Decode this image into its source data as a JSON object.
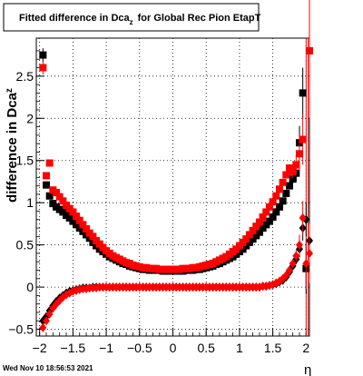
{
  "chart_data": {
    "type": "scatter",
    "title": "Fitted difference in Dca",
    "title_subscript": "z",
    "title_suffix": "for Global Rec Pion EtapT",
    "xlabel": "η",
    "ylabel": "difference in Dca",
    "ylabel_subscript": "z",
    "xlim": [
      -2.05,
      2.05
    ],
    "ylim": [
      -0.58,
      2.95
    ],
    "xticks": [
      {
        "v": -2,
        "label": "−2"
      },
      {
        "v": -1.5,
        "label": "−1.5"
      },
      {
        "v": -1,
        "label": "−1"
      },
      {
        "v": -0.5,
        "label": "−0.5"
      },
      {
        "v": 0,
        "label": "0"
      },
      {
        "v": 0.5,
        "label": "0.5"
      },
      {
        "v": 1,
        "label": "1"
      },
      {
        "v": 1.5,
        "label": "1.5"
      },
      {
        "v": 2,
        "label": "2"
      }
    ],
    "yticks": [
      {
        "v": -0.5,
        "label": "−0.5"
      },
      {
        "v": 0,
        "label": "0"
      },
      {
        "v": 0.5,
        "label": "0.5"
      },
      {
        "v": 1,
        "label": "1"
      },
      {
        "v": 1.5,
        "label": "1.5"
      },
      {
        "v": 2,
        "label": "2"
      },
      {
        "v": 2.5,
        "label": "2.5"
      }
    ],
    "grid": true,
    "series": [
      {
        "color": "#000000",
        "marker": "square",
        "x": [
          -1.95,
          -1.9,
          -1.85,
          -1.8,
          -1.75,
          -1.7,
          -1.65,
          -1.6,
          -1.55,
          -1.5,
          -1.45,
          -1.4,
          -1.35,
          -1.3,
          -1.25,
          -1.2,
          -1.15,
          -1.1,
          -1.05,
          -1.0,
          -0.95,
          -0.9,
          -0.85,
          -0.8,
          -0.75,
          -0.7,
          -0.65,
          -0.6,
          -0.55,
          -0.5,
          -0.45,
          -0.4,
          -0.35,
          -0.3,
          -0.25,
          -0.2,
          -0.15,
          -0.1,
          -0.05,
          0.0,
          0.05,
          0.1,
          0.15,
          0.2,
          0.25,
          0.3,
          0.35,
          0.4,
          0.45,
          0.5,
          0.55,
          0.6,
          0.65,
          0.7,
          0.75,
          0.8,
          0.85,
          0.9,
          0.95,
          1.0,
          1.05,
          1.1,
          1.15,
          1.2,
          1.25,
          1.3,
          1.35,
          1.4,
          1.45,
          1.5,
          1.55,
          1.6,
          1.65,
          1.7,
          1.75,
          1.8,
          1.85,
          1.9,
          1.95,
          2.0
        ],
        "y": [
          2.75,
          1.21,
          1.08,
          0.99,
          0.95,
          0.92,
          0.89,
          0.85,
          0.82,
          0.78,
          0.74,
          0.7,
          0.66,
          0.62,
          0.58,
          0.53,
          0.49,
          0.45,
          0.42,
          0.39,
          0.36,
          0.34,
          0.32,
          0.3,
          0.28,
          0.27,
          0.25,
          0.24,
          0.23,
          0.22,
          0.21,
          0.21,
          0.2,
          0.2,
          0.2,
          0.2,
          0.19,
          0.19,
          0.19,
          0.19,
          0.19,
          0.19,
          0.19,
          0.2,
          0.2,
          0.2,
          0.21,
          0.21,
          0.22,
          0.23,
          0.24,
          0.25,
          0.27,
          0.28,
          0.3,
          0.32,
          0.34,
          0.36,
          0.39,
          0.42,
          0.45,
          0.49,
          0.53,
          0.57,
          0.61,
          0.65,
          0.7,
          0.74,
          0.78,
          0.83,
          0.89,
          0.95,
          1.02,
          1.11,
          1.2,
          1.28,
          1.35,
          1.71,
          2.3,
          0.22
        ],
        "err": [
          0.08,
          0.03,
          0.02,
          0.02,
          0.01,
          0.01,
          0.01,
          0.01,
          0.01,
          0.01,
          0.01,
          0.01,
          0.01,
          0.01,
          0.01,
          0.01,
          0.01,
          0.01,
          0.01,
          0.01,
          0.01,
          0.01,
          0.01,
          0.01,
          0.01,
          0.01,
          0.01,
          0.01,
          0.01,
          0.01,
          0.01,
          0.01,
          0.01,
          0.01,
          0.01,
          0.01,
          0.01,
          0.01,
          0.01,
          0.01,
          0.01,
          0.01,
          0.01,
          0.01,
          0.01,
          0.01,
          0.01,
          0.01,
          0.01,
          0.01,
          0.01,
          0.01,
          0.01,
          0.01,
          0.01,
          0.01,
          0.01,
          0.01,
          0.01,
          0.01,
          0.01,
          0.01,
          0.01,
          0.01,
          0.01,
          0.01,
          0.01,
          0.01,
          0.01,
          0.01,
          0.01,
          0.01,
          0.01,
          0.02,
          0.03,
          0.05,
          0.1,
          0.2,
          0.3,
          0.3
        ]
      },
      {
        "color": "#ff0000",
        "marker": "square",
        "x": [
          -1.95,
          -1.9,
          -1.85,
          -1.8,
          -1.75,
          -1.7,
          -1.65,
          -1.6,
          -1.55,
          -1.5,
          -1.45,
          -1.4,
          -1.35,
          -1.3,
          -1.25,
          -1.2,
          -1.15,
          -1.1,
          -1.05,
          -1.0,
          -0.95,
          -0.9,
          -0.85,
          -0.8,
          -0.75,
          -0.7,
          -0.65,
          -0.6,
          -0.55,
          -0.5,
          -0.45,
          -0.4,
          -0.35,
          -0.3,
          -0.25,
          -0.2,
          -0.15,
          -0.1,
          -0.05,
          0.0,
          0.05,
          0.1,
          0.15,
          0.2,
          0.25,
          0.3,
          0.35,
          0.4,
          0.45,
          0.5,
          0.55,
          0.6,
          0.65,
          0.7,
          0.75,
          0.8,
          0.85,
          0.9,
          0.95,
          1.0,
          1.05,
          1.1,
          1.15,
          1.2,
          1.25,
          1.3,
          1.35,
          1.4,
          1.45,
          1.5,
          1.55,
          1.6,
          1.65,
          1.7,
          1.75,
          1.8,
          1.85,
          1.9,
          1.95,
          2.05
        ],
        "y": [
          2.6,
          1.32,
          1.47,
          1.15,
          1.12,
          1.07,
          1.02,
          0.97,
          0.93,
          0.89,
          0.84,
          0.79,
          0.74,
          0.69,
          0.64,
          0.6,
          0.55,
          0.51,
          0.47,
          0.43,
          0.4,
          0.37,
          0.35,
          0.33,
          0.31,
          0.29,
          0.28,
          0.26,
          0.25,
          0.24,
          0.23,
          0.23,
          0.22,
          0.22,
          0.22,
          0.21,
          0.21,
          0.21,
          0.21,
          0.21,
          0.21,
          0.21,
          0.22,
          0.22,
          0.22,
          0.23,
          0.23,
          0.24,
          0.25,
          0.26,
          0.27,
          0.28,
          0.3,
          0.32,
          0.34,
          0.36,
          0.39,
          0.42,
          0.45,
          0.49,
          0.53,
          0.57,
          0.62,
          0.67,
          0.72,
          0.77,
          0.83,
          0.89,
          0.95,
          1.01,
          1.08,
          1.16,
          1.24,
          1.33,
          1.41,
          1.37,
          1.45,
          1.58,
          1.75,
          2.8
        ],
        "err": [
          0.08,
          0.04,
          0.03,
          0.02,
          0.02,
          0.01,
          0.01,
          0.01,
          0.01,
          0.01,
          0.01,
          0.01,
          0.01,
          0.01,
          0.01,
          0.01,
          0.01,
          0.01,
          0.01,
          0.01,
          0.01,
          0.01,
          0.01,
          0.01,
          0.01,
          0.01,
          0.01,
          0.01,
          0.01,
          0.01,
          0.01,
          0.01,
          0.01,
          0.01,
          0.01,
          0.01,
          0.01,
          0.01,
          0.01,
          0.01,
          0.01,
          0.01,
          0.01,
          0.01,
          0.01,
          0.01,
          0.01,
          0.01,
          0.01,
          0.01,
          0.01,
          0.01,
          0.01,
          0.01,
          0.01,
          0.01,
          0.01,
          0.01,
          0.01,
          0.01,
          0.01,
          0.01,
          0.01,
          0.01,
          0.01,
          0.01,
          0.01,
          0.01,
          0.01,
          0.01,
          0.01,
          0.01,
          0.02,
          0.03,
          0.05,
          0.08,
          0.12,
          0.2,
          0.3,
          0.8
        ]
      },
      {
        "color": "#000000",
        "marker": "diamond",
        "x": [
          -1.95,
          -1.9,
          -1.85,
          -1.8,
          -1.75,
          -1.7,
          -1.65,
          -1.6,
          -1.55,
          -1.5,
          -1.45,
          -1.4,
          -1.35,
          -1.3,
          -1.25,
          -1.2,
          -1.15,
          -1.1,
          -1.05,
          -1.0,
          -0.95,
          -0.9,
          -0.85,
          -0.8,
          -0.75,
          -0.7,
          -0.65,
          -0.6,
          -0.55,
          -0.5,
          -0.45,
          -0.4,
          -0.35,
          -0.3,
          -0.25,
          -0.2,
          -0.15,
          -0.1,
          -0.05,
          0.0,
          0.05,
          0.1,
          0.15,
          0.2,
          0.25,
          0.3,
          0.35,
          0.4,
          0.45,
          0.5,
          0.55,
          0.6,
          0.65,
          0.7,
          0.75,
          0.8,
          0.85,
          0.9,
          0.95,
          1.0,
          1.05,
          1.1,
          1.15,
          1.2,
          1.25,
          1.3,
          1.35,
          1.4,
          1.45,
          1.5,
          1.55,
          1.6,
          1.65,
          1.7,
          1.75,
          1.8,
          1.85,
          1.9,
          1.95,
          2.0,
          2.05
        ],
        "y": [
          -0.4,
          -0.35,
          -0.28,
          -0.22,
          -0.17,
          -0.13,
          -0.1,
          -0.07,
          -0.05,
          -0.04,
          -0.03,
          -0.02,
          -0.01,
          -0.01,
          -0.01,
          0.0,
          0.0,
          0.0,
          0.0,
          0.0,
          0.0,
          0.0,
          0.0,
          0.0,
          0.0,
          0.0,
          0.0,
          0.0,
          0.0,
          0.0,
          0.0,
          0.0,
          0.0,
          0.0,
          0.0,
          0.0,
          0.0,
          0.0,
          0.0,
          0.0,
          0.0,
          0.0,
          0.0,
          0.0,
          0.0,
          0.0,
          0.0,
          0.0,
          0.0,
          0.0,
          0.0,
          0.0,
          0.0,
          0.0,
          0.0,
          0.0,
          0.0,
          0.0,
          0.0,
          0.0,
          0.0,
          0.0,
          0.0,
          0.0,
          0.0,
          0.0,
          0.01,
          0.01,
          0.02,
          0.03,
          0.04,
          0.06,
          0.08,
          0.12,
          0.18,
          0.25,
          0.33,
          0.45,
          0.7,
          0.8,
          0.55
        ],
        "err": [
          0.04,
          0.03,
          0.02,
          0.02,
          0.01,
          0.01,
          0.01,
          0.01,
          0.01,
          0.01,
          0.01,
          0.01,
          0.01,
          0.01,
          0.01,
          0.01,
          0.01,
          0.01,
          0.01,
          0.01,
          0.01,
          0.01,
          0.01,
          0.01,
          0.01,
          0.01,
          0.01,
          0.01,
          0.01,
          0.01,
          0.01,
          0.01,
          0.01,
          0.01,
          0.01,
          0.01,
          0.01,
          0.01,
          0.01,
          0.01,
          0.01,
          0.01,
          0.01,
          0.01,
          0.01,
          0.01,
          0.01,
          0.01,
          0.01,
          0.01,
          0.01,
          0.01,
          0.01,
          0.01,
          0.01,
          0.01,
          0.01,
          0.01,
          0.01,
          0.01,
          0.01,
          0.01,
          0.01,
          0.01,
          0.01,
          0.01,
          0.01,
          0.01,
          0.01,
          0.01,
          0.01,
          0.01,
          0.02,
          0.02,
          0.03,
          0.04,
          0.06,
          0.1,
          0.15,
          0.2,
          0.25
        ]
      },
      {
        "color": "#ff0000",
        "marker": "diamond",
        "x": [
          -1.95,
          -1.9,
          -1.85,
          -1.8,
          -1.75,
          -1.7,
          -1.65,
          -1.6,
          -1.55,
          -1.5,
          -1.45,
          -1.4,
          -1.35,
          -1.3,
          -1.25,
          -1.2,
          -1.15,
          -1.1,
          -1.05,
          -1.0,
          -0.95,
          -0.9,
          -0.85,
          -0.8,
          -0.75,
          -0.7,
          -0.65,
          -0.6,
          -0.55,
          -0.5,
          -0.45,
          -0.4,
          -0.35,
          -0.3,
          -0.25,
          -0.2,
          -0.15,
          -0.1,
          -0.05,
          0.0,
          0.05,
          0.1,
          0.15,
          0.2,
          0.25,
          0.3,
          0.35,
          0.4,
          0.45,
          0.5,
          0.55,
          0.6,
          0.65,
          0.7,
          0.75,
          0.8,
          0.85,
          0.9,
          0.95,
          1.0,
          1.05,
          1.1,
          1.15,
          1.2,
          1.25,
          1.3,
          1.35,
          1.4,
          1.45,
          1.5,
          1.55,
          1.6,
          1.65,
          1.7,
          1.75,
          1.8,
          1.85,
          1.9,
          1.95,
          2.0,
          2.05
        ],
        "y": [
          -0.48,
          -0.4,
          -0.32,
          -0.25,
          -0.2,
          -0.16,
          -0.12,
          -0.09,
          -0.07,
          -0.05,
          -0.04,
          -0.03,
          -0.02,
          -0.02,
          -0.01,
          -0.01,
          -0.01,
          0.0,
          0.0,
          0.0,
          0.0,
          0.0,
          0.0,
          0.0,
          0.0,
          0.0,
          0.0,
          0.0,
          0.0,
          0.0,
          0.0,
          0.0,
          0.0,
          0.0,
          0.0,
          0.0,
          0.0,
          0.0,
          0.0,
          0.0,
          0.0,
          0.0,
          0.0,
          0.0,
          0.0,
          0.0,
          0.0,
          0.0,
          0.0,
          0.0,
          0.0,
          0.0,
          0.0,
          0.0,
          0.0,
          0.0,
          0.0,
          0.0,
          0.0,
          0.0,
          0.0,
          0.0,
          0.0,
          0.0,
          0.0,
          0.0,
          0.01,
          0.01,
          0.02,
          0.03,
          0.05,
          0.07,
          0.1,
          0.14,
          0.2,
          0.28,
          0.37,
          0.5,
          0.82,
          0.28,
          0.4
        ],
        "err": [
          0.05,
          0.03,
          0.02,
          0.02,
          0.01,
          0.01,
          0.01,
          0.01,
          0.01,
          0.01,
          0.01,
          0.01,
          0.01,
          0.01,
          0.01,
          0.01,
          0.01,
          0.01,
          0.01,
          0.01,
          0.01,
          0.01,
          0.01,
          0.01,
          0.01,
          0.01,
          0.01,
          0.01,
          0.01,
          0.01,
          0.01,
          0.01,
          0.01,
          0.01,
          0.01,
          0.01,
          0.01,
          0.01,
          0.01,
          0.01,
          0.01,
          0.01,
          0.01,
          0.01,
          0.01,
          0.01,
          0.01,
          0.01,
          0.01,
          0.01,
          0.01,
          0.01,
          0.01,
          0.01,
          0.01,
          0.01,
          0.01,
          0.01,
          0.01,
          0.01,
          0.01,
          0.01,
          0.01,
          0.01,
          0.01,
          0.01,
          0.01,
          0.01,
          0.01,
          0.01,
          0.01,
          0.01,
          0.02,
          0.02,
          0.03,
          0.05,
          0.07,
          0.12,
          0.2,
          0.3,
          0.35
        ]
      }
    ],
    "vertical_lines": [
      {
        "x": 2.0,
        "color": "#ff0000"
      },
      {
        "x": 2.03,
        "color": "#ff0000"
      }
    ]
  },
  "footer": {
    "timestamp": "Wed Nov 10 18:56:53 2021"
  }
}
